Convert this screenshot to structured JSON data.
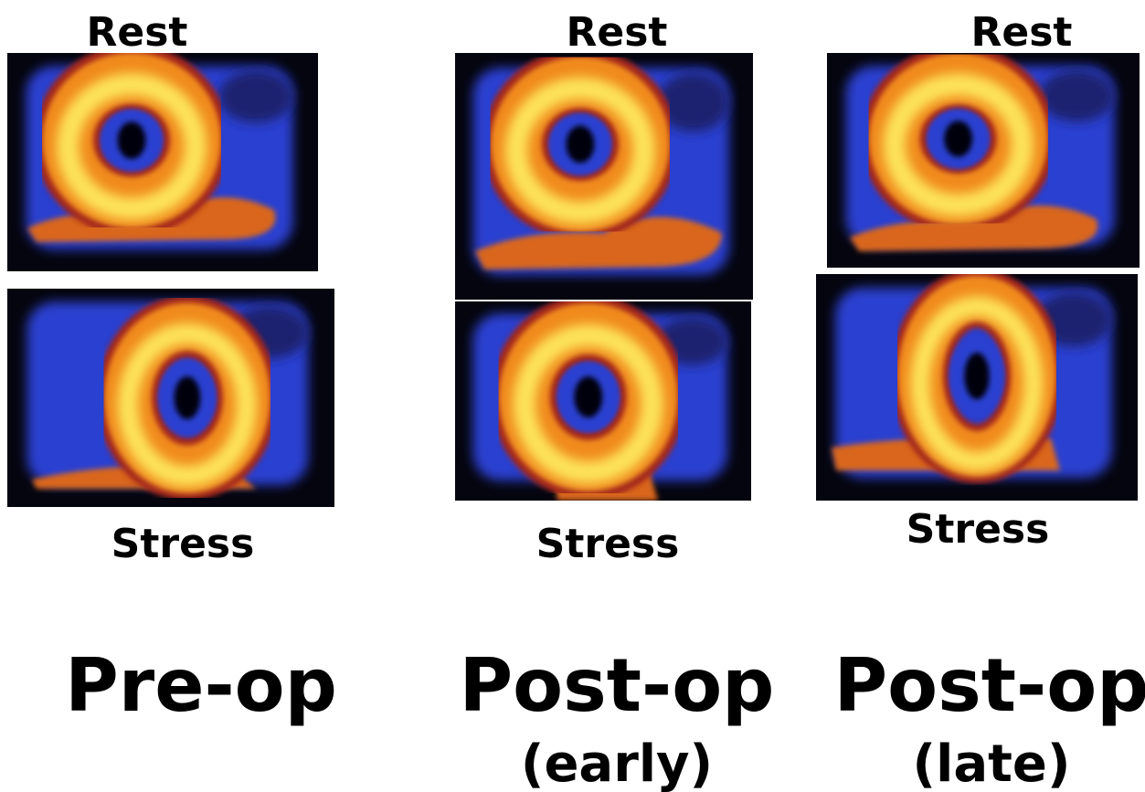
{
  "panels": [
    {
      "rest_label": "Rest",
      "stress_label": "Stress",
      "title": "Pre-op"
    },
    {
      "rest_label": "Rest",
      "stress_label": "Stress",
      "title": "Post-op",
      "subtitle": "(early)"
    },
    {
      "rest_label": "Rest",
      "stress_label": "Stress",
      "title": "Post-op",
      "subtitle": "(late)"
    }
  ]
}
